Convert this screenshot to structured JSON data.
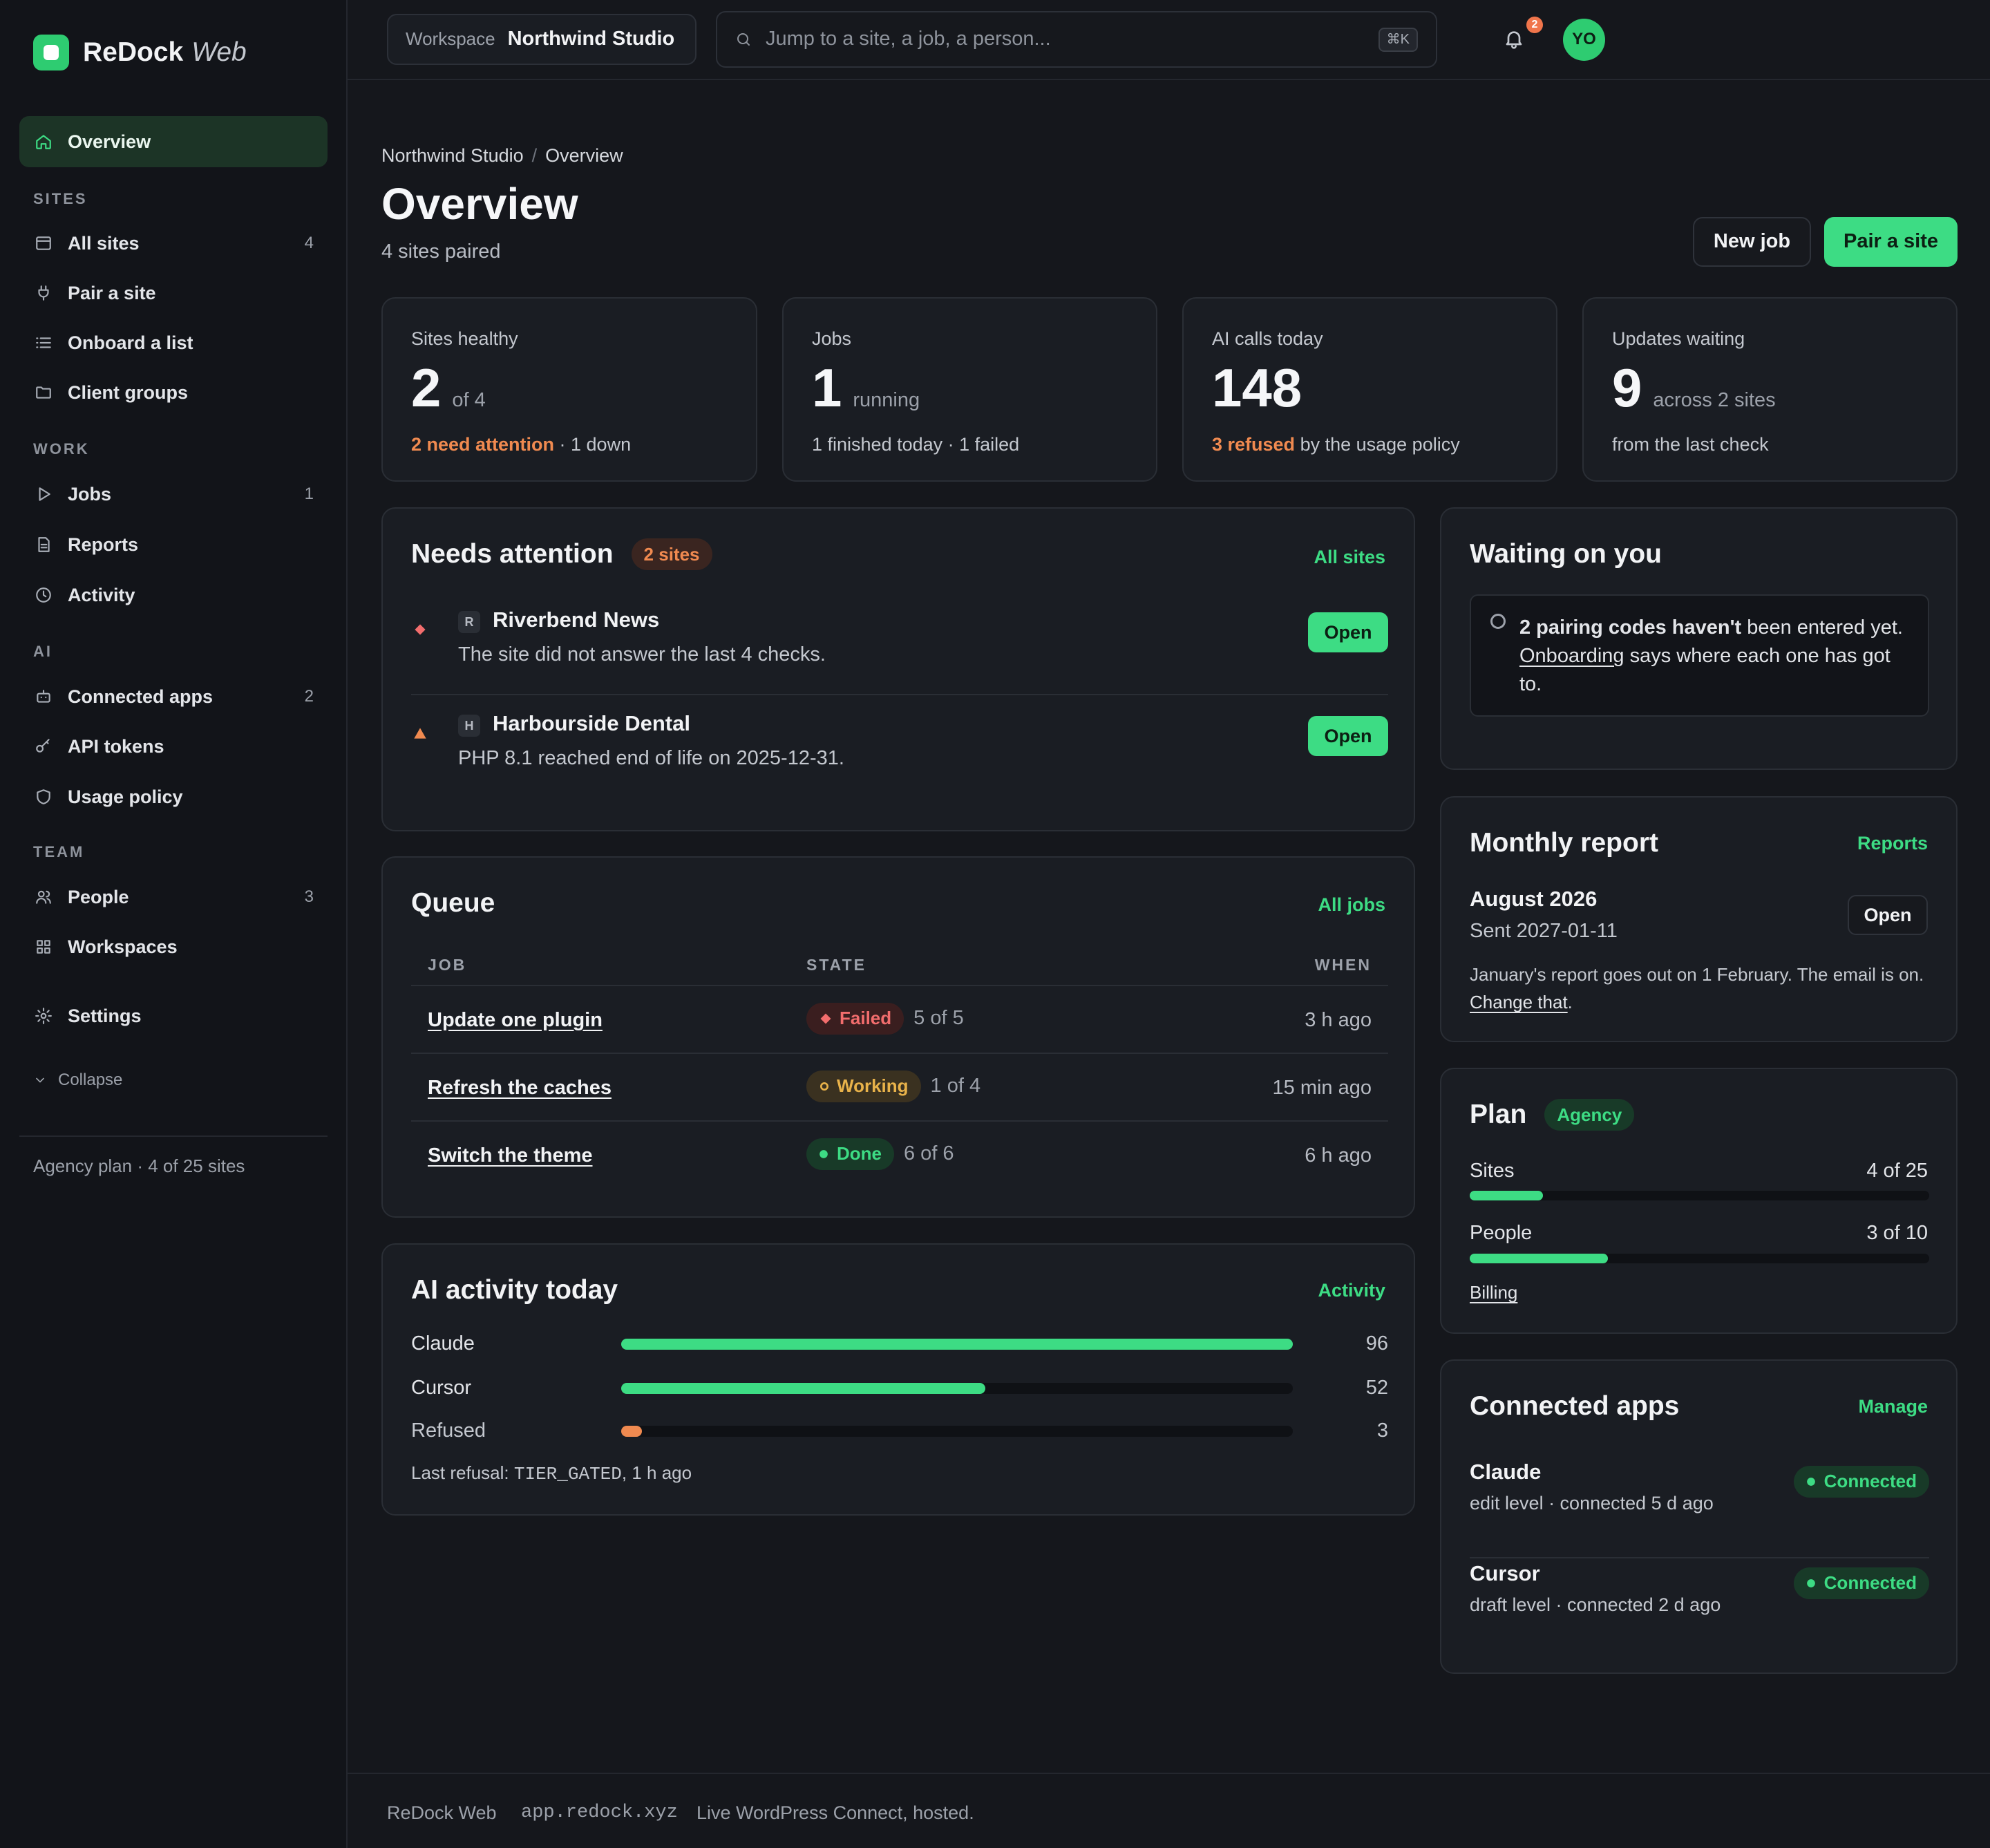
{
  "brand": {
    "name": "ReDock",
    "sub": "Web"
  },
  "sidebar": {
    "overview": "Overview",
    "sections": {
      "sites": "SITES",
      "work": "WORK",
      "ai": "AI",
      "team": "TEAM"
    },
    "items": {
      "all_sites": {
        "label": "All sites",
        "count": "4"
      },
      "pair_site": {
        "label": "Pair a site"
      },
      "onboard": {
        "label": "Onboard a list"
      },
      "client_groups": {
        "label": "Client groups"
      },
      "jobs": {
        "label": "Jobs",
        "count": "1"
      },
      "reports": {
        "label": "Reports"
      },
      "activity": {
        "label": "Activity"
      },
      "connected_apps": {
        "label": "Connected apps",
        "count": "2"
      },
      "api_tokens": {
        "label": "API tokens"
      },
      "usage_policy": {
        "label": "Usage policy"
      },
      "people": {
        "label": "People",
        "count": "3"
      },
      "workspaces": {
        "label": "Workspaces"
      },
      "settings": {
        "label": "Settings"
      }
    },
    "collapse": "Collapse",
    "plan_text": "Agency plan · 4 of 25 sites"
  },
  "topbar": {
    "workspace_label": "Workspace",
    "workspace_value": "Northwind Studio",
    "search_placeholder": "Jump to a site, a job, a person...",
    "search_kbd": "⌘K",
    "notif_count": "2",
    "avatar": "YO"
  },
  "header": {
    "crumb_1": "Northwind Studio",
    "crumb_sep": "/",
    "crumb_2": "Overview",
    "title": "Overview",
    "subtitle": "4 sites paired",
    "new_job": "New job",
    "pair_site": "Pair a site"
  },
  "stats": [
    {
      "label": "Sites healthy",
      "num": "2",
      "unit": "of 4",
      "warn": "2 need attention",
      "foot": " · 1 down"
    },
    {
      "label": "Jobs",
      "num": "1",
      "unit": "running",
      "warn": "",
      "foot": "1 finished today · 1 failed"
    },
    {
      "label": "AI calls today",
      "num": "148",
      "unit": "",
      "warn": "3 refused",
      "foot": " by the usage policy"
    },
    {
      "label": "Updates waiting",
      "num": "9",
      "unit": "across 2 sites",
      "warn": "",
      "foot": "from the last check"
    }
  ],
  "attention": {
    "title": "Needs attention",
    "badge": "2 sites",
    "link": "All sites",
    "rows": [
      {
        "letter": "R",
        "name": "Riverbend News",
        "desc": "The site did not answer the last 4 checks.",
        "action": "Open"
      },
      {
        "letter": "H",
        "name": "Harbourside Dental",
        "desc": "PHP 8.1 reached end of life on 2025-12-31.",
        "action": "Open"
      }
    ]
  },
  "queue": {
    "title": "Queue",
    "link": "All jobs",
    "headers": {
      "job": "JOB",
      "state": "STATE",
      "when": "WHEN"
    },
    "rows": [
      {
        "job": "Update one plugin",
        "state": "Failed",
        "progress": "5 of 5",
        "when": "3 h ago"
      },
      {
        "job": "Refresh the caches",
        "state": "Working",
        "progress": "1 of 4",
        "when": "15 min ago"
      },
      {
        "job": "Switch the theme",
        "state": "Done",
        "progress": "6 of 6",
        "when": "6 h ago"
      }
    ]
  },
  "ai_activity": {
    "title": "AI activity today",
    "link": "Activity",
    "rows": [
      {
        "name": "Claude",
        "value": 96,
        "value_text": "96",
        "color": "#3ddc84"
      },
      {
        "name": "Cursor",
        "value": 52,
        "value_text": "52",
        "color": "#3ddc84"
      },
      {
        "name": "Refused",
        "value": 3,
        "value_text": "3",
        "color": "#f08a50"
      }
    ],
    "max": 96,
    "last_refusal_label": "Last refusal: ",
    "last_refusal_code": "TIER_GATED",
    "last_refusal_time": ", 1 h ago"
  },
  "waiting": {
    "title": "Waiting on you",
    "bold": "2 pairing codes haven't",
    "text_1": " been entered yet. ",
    "link": "Onboarding",
    "text_2": " says where each one has got to."
  },
  "monthly": {
    "title": "Monthly report",
    "link": "Reports",
    "month": "August 2026",
    "sent": "Sent 2027-01-11",
    "open": "Open",
    "note": "January's report goes out on 1 February. The email is on. ",
    "change": "Change that",
    "dot": "."
  },
  "plan": {
    "title": "Plan",
    "badge": "Agency",
    "sites_label": "Sites",
    "sites_value": "4 of 25",
    "sites_fraction": 0.16,
    "people_label": "People",
    "people_value": "3 of 10",
    "people_fraction": 0.3,
    "billing": "Billing"
  },
  "apps": {
    "title": "Connected apps",
    "link": "Manage",
    "rows": [
      {
        "name": "Claude",
        "detail": "edit level · connected 5 d ago",
        "status": "Connected"
      },
      {
        "name": "Cursor",
        "detail": "draft level · connected 2 d ago",
        "status": "Connected"
      }
    ]
  },
  "footer": {
    "name": "ReDock Web",
    "url": "app.redock.xyz",
    "tagline": "Live WordPress Connect, hosted."
  },
  "colors": {
    "accent": "#3ddc84",
    "warning": "#f08a50",
    "danger": "#f26d6d",
    "amber": "#e8b24a"
  }
}
